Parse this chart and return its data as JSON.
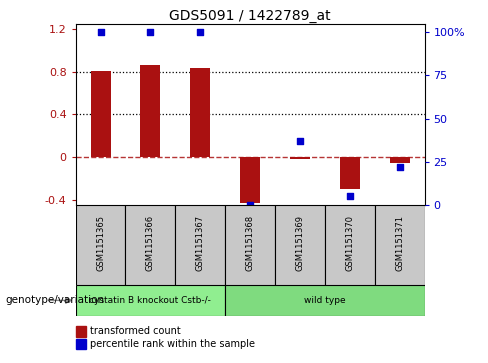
{
  "title": "GDS5091 / 1422789_at",
  "samples": [
    "GSM1151365",
    "GSM1151366",
    "GSM1151367",
    "GSM1151368",
    "GSM1151369",
    "GSM1151370",
    "GSM1151371"
  ],
  "bar_values": [
    0.81,
    0.865,
    0.835,
    -0.43,
    -0.02,
    -0.3,
    -0.06
  ],
  "dot_percentiles": [
    100,
    100,
    100,
    0,
    37,
    5,
    22
  ],
  "bar_color": "#AA1111",
  "dot_color": "#0000CC",
  "ylim": [
    -0.45,
    1.25
  ],
  "y2lim": [
    0,
    105
  ],
  "yticks": [
    -0.4,
    0.0,
    0.4,
    0.8,
    1.2
  ],
  "ytick_labels": [
    "-0.4",
    "0",
    "0.4",
    "0.8",
    "1.2"
  ],
  "y2ticks": [
    0,
    25,
    50,
    75,
    100
  ],
  "y2ticklabels": [
    "0",
    "25",
    "50",
    "75",
    "100%"
  ],
  "hlines": [
    0.8,
    0.4
  ],
  "zero_line": 0.0,
  "groups": [
    {
      "label": "cystatin B knockout Cstb-/-",
      "start": 0,
      "end": 3,
      "color": "#90EE90"
    },
    {
      "label": "wild type",
      "start": 3,
      "end": 7,
      "color": "#7FDB7F"
    }
  ],
  "xlabel_group": "genotype/variation",
  "legend_bar": "transformed count",
  "legend_dot": "percentile rank within the sample",
  "figsize": [
    4.88,
    3.63
  ],
  "dpi": 100
}
